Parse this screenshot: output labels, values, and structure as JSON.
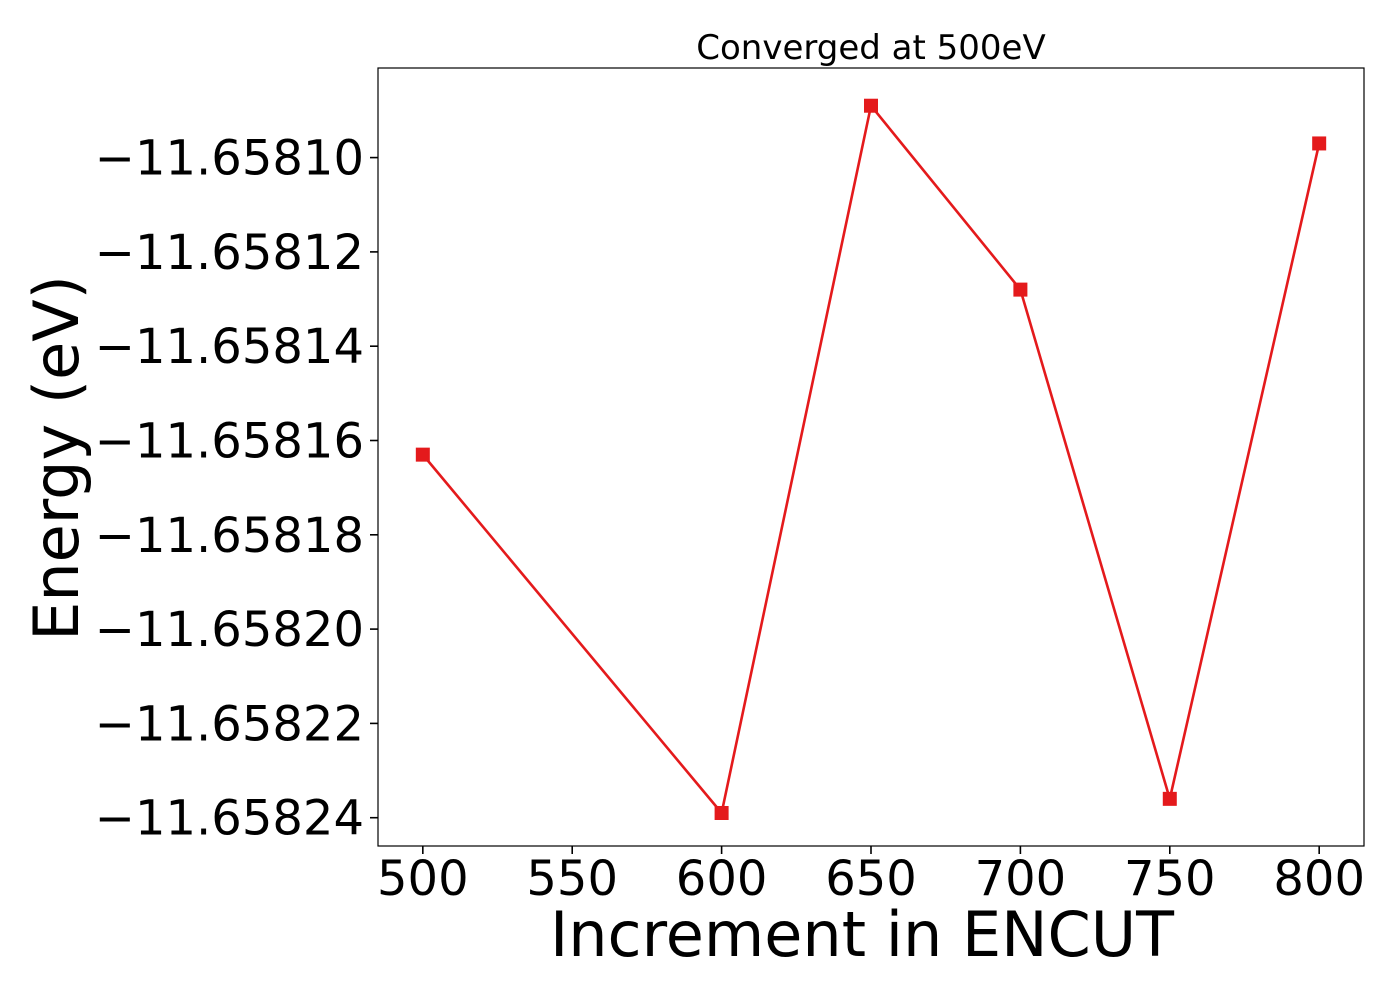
{
  "chart_data": {
    "type": "line",
    "title": "Converged at 500eV",
    "xlabel": "Increment in ENCUT",
    "ylabel": "Energy (eV)",
    "x": [
      500,
      600,
      650,
      700,
      750,
      800
    ],
    "series": [
      {
        "values": [
          -11.658163,
          -11.658239,
          -11.658089,
          -11.658128,
          -11.658236,
          -11.658097
        ],
        "color": "#e41a1c",
        "marker": "square"
      }
    ],
    "xlim": [
      485,
      815
    ],
    "ylim": [
      -11.658246,
      -11.658081
    ],
    "xticks": [
      500,
      550,
      600,
      650,
      700,
      750,
      800
    ],
    "xtick_labels": [
      "500",
      "550",
      "600",
      "650",
      "700",
      "750",
      "800"
    ],
    "yticks": [
      -11.6581,
      -11.65812,
      -11.65814,
      -11.65816,
      -11.65818,
      -11.6582,
      -11.65822,
      -11.65824
    ],
    "ytick_labels": [
      "−11.65810",
      "−11.65812",
      "−11.65814",
      "−11.65816",
      "−11.65818",
      "−11.65820",
      "−11.65822",
      "−11.65824"
    ],
    "grid": false,
    "legend": "none"
  }
}
